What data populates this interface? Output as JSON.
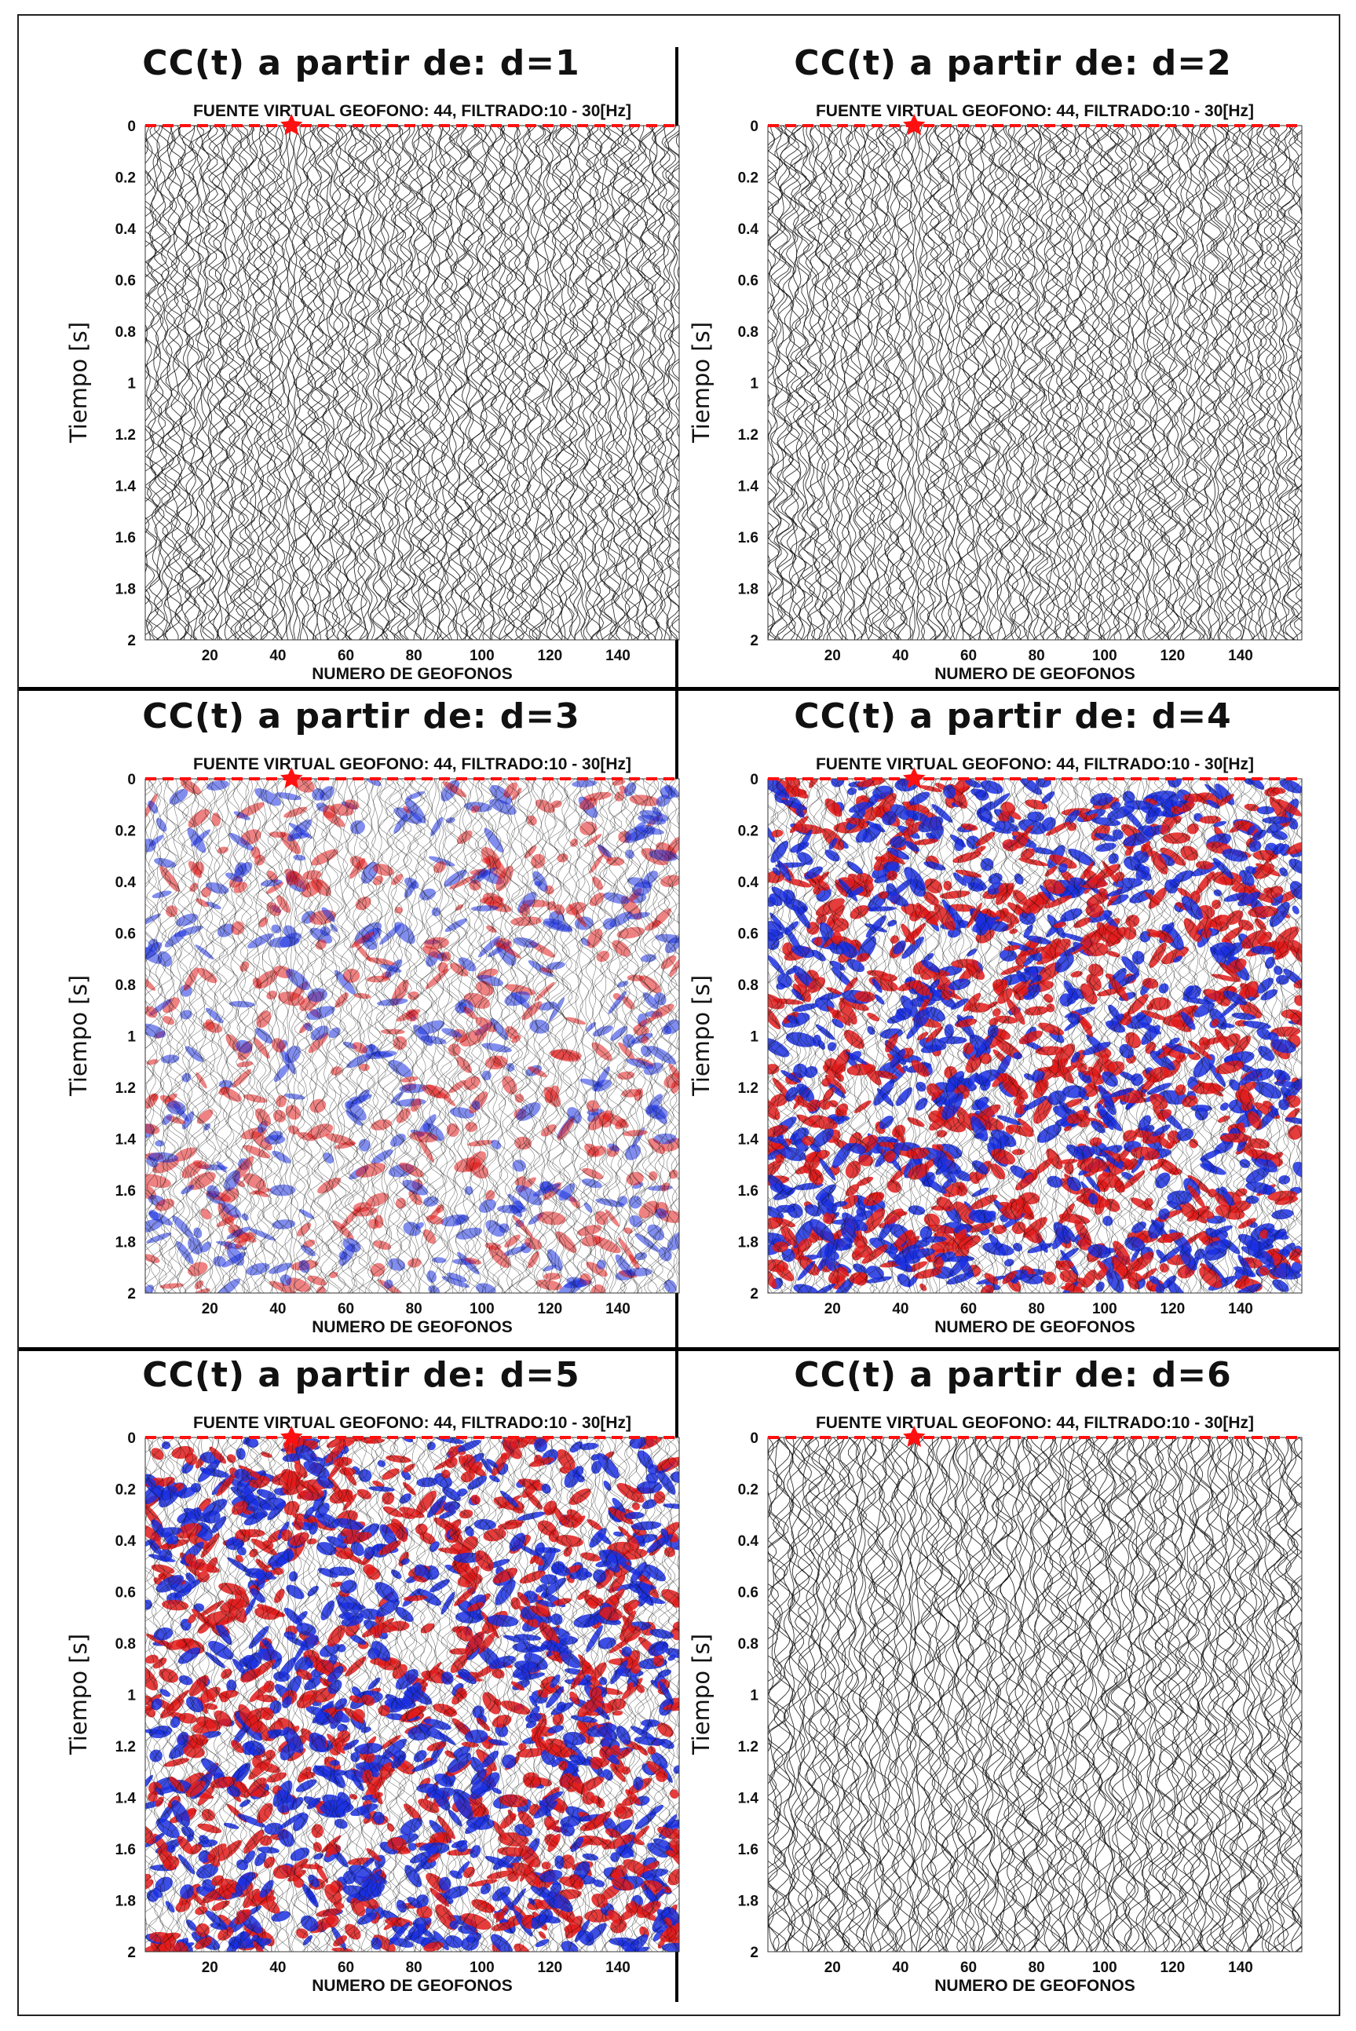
{
  "figure": {
    "border_color": "#222222"
  },
  "colors": {
    "trace": "#111111",
    "trace_pos": "#1a2fe0",
    "trace_neg": "#e01a1a",
    "source_marker": "#ff1010"
  },
  "chart_data": [
    {
      "type": "seismic-wiggle",
      "title": "CC(t) a partir de: d=1",
      "subtitle": "FUENTE VIRTUAL GEOFONO: 44, FILTRADO:10 - 30[Hz]",
      "xlabel": "NUMERO DE GEOFONOS",
      "ylabel": "Tiempo [s]",
      "xlim": [
        1,
        158
      ],
      "ylim": [
        0,
        2
      ],
      "y_inverted": true,
      "xticks": [
        20,
        40,
        60,
        80,
        100,
        120,
        140
      ],
      "yticks": [
        0,
        0.2,
        0.4,
        0.6,
        0.8,
        1,
        1.2,
        1.4,
        1.6,
        1.8,
        2
      ],
      "virtual_source_geophone": 44,
      "filter_hz": [
        10,
        30
      ],
      "fill_colors": false
    },
    {
      "type": "seismic-wiggle",
      "title": "CC(t) a partir de: d=2",
      "subtitle": "FUENTE VIRTUAL GEOFONO: 44, FILTRADO:10 - 30[Hz]",
      "xlabel": "NUMERO DE GEOFONOS",
      "ylabel": "Tiempo [s]",
      "xlim": [
        1,
        158
      ],
      "ylim": [
        0,
        2
      ],
      "y_inverted": true,
      "xticks": [
        20,
        40,
        60,
        80,
        100,
        120,
        140
      ],
      "yticks": [
        0,
        0.2,
        0.4,
        0.6,
        0.8,
        1,
        1.2,
        1.4,
        1.6,
        1.8,
        2
      ],
      "virtual_source_geophone": 44,
      "filter_hz": [
        10,
        30
      ],
      "fill_colors": false
    },
    {
      "type": "seismic-wiggle",
      "title": "CC(t) a partir de: d=3",
      "subtitle": "FUENTE VIRTUAL GEOFONO: 44, FILTRADO:10 - 30[Hz]",
      "xlabel": "NUMERO DE GEOFONOS",
      "ylabel": "Tiempo [s]",
      "xlim": [
        1,
        158
      ],
      "ylim": [
        0,
        2
      ],
      "y_inverted": true,
      "xticks": [
        20,
        40,
        60,
        80,
        100,
        120,
        140
      ],
      "yticks": [
        0,
        0.2,
        0.4,
        0.6,
        0.8,
        1,
        1.2,
        1.4,
        1.6,
        1.8,
        2
      ],
      "virtual_source_geophone": 44,
      "filter_hz": [
        10,
        30
      ],
      "fill_colors": true
    },
    {
      "type": "seismic-wiggle",
      "title": "CC(t) a partir de: d=4",
      "subtitle": "FUENTE VIRTUAL GEOFONO: 44, FILTRADO:10 - 30[Hz]",
      "xlabel": "NUMERO DE GEOFONOS",
      "ylabel": "Tiempo [s]",
      "xlim": [
        1,
        158
      ],
      "ylim": [
        0,
        2
      ],
      "y_inverted": true,
      "xticks": [
        20,
        40,
        60,
        80,
        100,
        120,
        140
      ],
      "yticks": [
        0,
        0.2,
        0.4,
        0.6,
        0.8,
        1,
        1.2,
        1.4,
        1.6,
        1.8,
        2
      ],
      "virtual_source_geophone": 44,
      "filter_hz": [
        10,
        30
      ],
      "fill_colors": true
    },
    {
      "type": "seismic-wiggle",
      "title": "CC(t) a partir de: d=5",
      "subtitle": "FUENTE VIRTUAL GEOFONO: 44, FILTRADO:10 - 30[Hz]",
      "xlabel": "NUMERO DE GEOFONOS",
      "ylabel": "Tiempo [s]",
      "xlim": [
        1,
        158
      ],
      "ylim": [
        0,
        2
      ],
      "y_inverted": true,
      "xticks": [
        20,
        40,
        60,
        80,
        100,
        120,
        140
      ],
      "yticks": [
        0,
        0.2,
        0.4,
        0.6,
        0.8,
        1,
        1.2,
        1.4,
        1.6,
        1.8,
        2
      ],
      "virtual_source_geophone": 44,
      "filter_hz": [
        10,
        30
      ],
      "fill_colors": true
    },
    {
      "type": "seismic-wiggle",
      "title": "CC(t) a partir de: d=6",
      "subtitle": "FUENTE VIRTUAL GEOFONO: 44, FILTRADO:10 - 30[Hz]",
      "xlabel": "NUMERO DE GEOFONOS",
      "ylabel": "Tiempo [s]",
      "xlim": [
        1,
        158
      ],
      "ylim": [
        0,
        2
      ],
      "y_inverted": true,
      "xticks": [
        20,
        40,
        60,
        80,
        100,
        120,
        140
      ],
      "yticks": [
        0,
        0.2,
        0.4,
        0.6,
        0.8,
        1,
        1.2,
        1.4,
        1.6,
        1.8,
        2
      ],
      "virtual_source_geophone": 44,
      "filter_hz": [
        10,
        30
      ],
      "fill_colors": false
    }
  ]
}
